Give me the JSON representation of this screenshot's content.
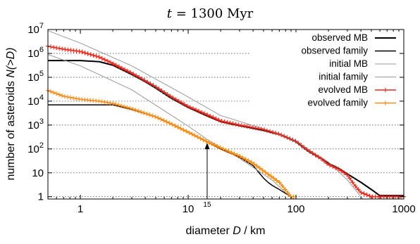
{
  "chart_data": {
    "type": "line",
    "title": {
      "var": "t",
      "rest": " = 1300 Myr"
    },
    "xlabel": {
      "pre": "diameter ",
      "var": "D",
      "post": " / km"
    },
    "ylabel": {
      "pre": "number of asteroids ",
      "var": "N(>D)"
    },
    "xscale": "log",
    "yscale": "log",
    "xlim": [
      0.5,
      1000
    ],
    "ylim": [
      0.8,
      10000000
    ],
    "grid": "horizontal dotted",
    "legend_position": "top-right",
    "x_ticks": [
      {
        "value": 1,
        "label": "1"
      },
      {
        "value": 10,
        "label": "10"
      },
      {
        "value": 100,
        "label": "100"
      },
      {
        "value": 1000,
        "label": "1000"
      }
    ],
    "y_ticks": [
      {
        "value": 1,
        "base": "1",
        "exp": ""
      },
      {
        "value": 10,
        "base": "10",
        "exp": ""
      },
      {
        "value": 100,
        "base": "10",
        "exp": "2"
      },
      {
        "value": 1000,
        "base": "10",
        "exp": "3"
      },
      {
        "value": 10000,
        "base": "10",
        "exp": "4"
      },
      {
        "value": 100000,
        "base": "10",
        "exp": "5"
      },
      {
        "value": 1000000,
        "base": "10",
        "exp": "6"
      },
      {
        "value": 10000000,
        "base": "10",
        "exp": "7"
      }
    ],
    "annotation": {
      "label": "15",
      "x": 15,
      "y_from": 0.8,
      "y_to": 180
    },
    "series": [
      {
        "name": "observed MB",
        "color": "#000000",
        "marker": "none",
        "width": 2,
        "points": [
          [
            0.5,
            500000
          ],
          [
            1,
            500000
          ],
          [
            1.5,
            450000
          ],
          [
            2,
            320000
          ],
          [
            3,
            130000
          ],
          [
            4,
            65000
          ],
          [
            5,
            35000
          ],
          [
            7,
            13000
          ],
          [
            10,
            5500
          ],
          [
            15,
            2400
          ],
          [
            20,
            1400
          ],
          [
            30,
            950
          ],
          [
            50,
            600
          ],
          [
            70,
            400
          ],
          [
            100,
            200
          ],
          [
            130,
            80
          ],
          [
            170,
            40
          ],
          [
            200,
            25
          ],
          [
            250,
            15
          ],
          [
            300,
            9
          ],
          [
            400,
            4
          ],
          [
            500,
            2
          ],
          [
            600,
            1.1
          ],
          [
            1000,
            1.1
          ]
        ]
      },
      {
        "name": "observed family",
        "color": "#000000",
        "marker": "none",
        "width": 1.5,
        "points": [
          [
            0.5,
            7000
          ],
          [
            1,
            7000
          ],
          [
            2,
            7000
          ],
          [
            3,
            4500
          ],
          [
            5,
            2200
          ],
          [
            7,
            1100
          ],
          [
            10,
            500
          ],
          [
            15,
            200
          ],
          [
            20,
            100
          ],
          [
            30,
            45
          ],
          [
            40,
            20
          ],
          [
            50,
            6
          ],
          [
            55,
            4
          ],
          [
            60,
            3
          ],
          [
            70,
            2
          ],
          [
            90,
            1
          ],
          [
            95,
            1
          ]
        ]
      },
      {
        "name": "initial MB",
        "color": "#999999",
        "marker": "none",
        "width": 1,
        "points": [
          [
            0.5,
            9000000
          ],
          [
            1,
            2700000
          ],
          [
            3,
            300000
          ],
          [
            10,
            15000
          ],
          [
            20,
            2500
          ],
          [
            50,
            700
          ],
          [
            100,
            200
          ],
          [
            200,
            28
          ],
          [
            300,
            5
          ],
          [
            400,
            1
          ],
          [
            420,
            0.8
          ]
        ]
      },
      {
        "name": "initial family",
        "color": "#999999",
        "marker": "none",
        "width": 1,
        "points": [
          [
            0.5,
            900000
          ],
          [
            1,
            300000
          ],
          [
            3,
            30000
          ],
          [
            10,
            900
          ],
          [
            15,
            250
          ],
          [
            30,
            40
          ],
          [
            60,
            5
          ],
          [
            80,
            1.5
          ],
          [
            95,
            0.8
          ]
        ]
      },
      {
        "name": "evolved MB",
        "color": "#e8291d",
        "marker": "plus",
        "width": 1.5,
        "points": [
          [
            0.5,
            2000000
          ],
          [
            0.7,
            1500000
          ],
          [
            1,
            1200000
          ],
          [
            1.5,
            700000
          ],
          [
            2,
            380000
          ],
          [
            3,
            150000
          ],
          [
            4,
            72000
          ],
          [
            5,
            40000
          ],
          [
            7,
            15000
          ],
          [
            10,
            6000
          ],
          [
            15,
            2700
          ],
          [
            20,
            1500
          ],
          [
            30,
            1000
          ],
          [
            50,
            650
          ],
          [
            70,
            420
          ],
          [
            100,
            210
          ],
          [
            130,
            85
          ],
          [
            170,
            40
          ],
          [
            200,
            22
          ],
          [
            250,
            14
          ],
          [
            300,
            8
          ],
          [
            350,
            3
          ],
          [
            400,
            1.5
          ],
          [
            500,
            1
          ],
          [
            1000,
            1
          ]
        ]
      },
      {
        "name": "evolved family",
        "color": "#f28b1e",
        "marker": "plus",
        "width": 1.5,
        "points": [
          [
            0.5,
            28000
          ],
          [
            0.7,
            16000
          ],
          [
            1,
            12000
          ],
          [
            1.5,
            10000
          ],
          [
            2,
            8000
          ],
          [
            3,
            4800
          ],
          [
            5,
            2200
          ],
          [
            7,
            1100
          ],
          [
            10,
            500
          ],
          [
            15,
            200
          ],
          [
            20,
            110
          ],
          [
            30,
            50
          ],
          [
            40,
            25
          ],
          [
            50,
            12
          ],
          [
            70,
            4
          ],
          [
            90,
            1
          ],
          [
            95,
            1
          ]
        ]
      }
    ]
  }
}
